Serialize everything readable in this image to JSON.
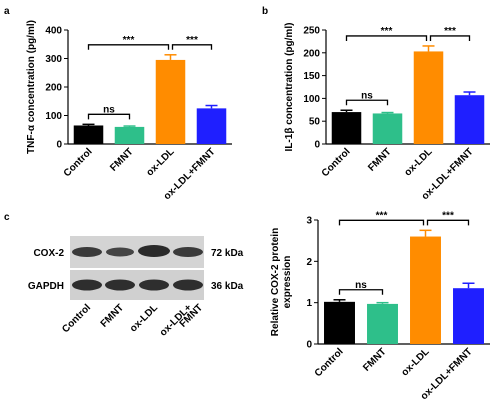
{
  "panel_labels": [
    "a",
    "b",
    "c"
  ],
  "chart_data": [
    {
      "type": "bar",
      "ylabel": "TNF-α concentration (pg/ml)",
      "categories": [
        "Control",
        "FMNT",
        "ox-LDL",
        "ox-LDL+FMNT"
      ],
      "values": [
        65,
        60,
        295,
        125
      ],
      "errors": [
        4,
        3,
        18,
        10
      ],
      "colors": [
        "#000000",
        "#2ebf8a",
        "#ff8c00",
        "#1f1fff"
      ],
      "ylim": [
        0,
        400
      ],
      "yticks": [
        0,
        100,
        200,
        300,
        400
      ],
      "annotations": [
        {
          "text": "ns",
          "categories": [
            "Control",
            "FMNT"
          ]
        },
        {
          "text": "***",
          "categories": [
            "Control",
            "ox-LDL"
          ]
        },
        {
          "text": "***",
          "categories": [
            "ox-LDL",
            "ox-LDL+FMNT"
          ]
        }
      ]
    },
    {
      "type": "bar",
      "ylabel": "IL-1β concentration (pg/ml)",
      "categories": [
        "Control",
        "FMNT",
        "ox-LDL",
        "ox-LDL+FMNT"
      ],
      "values": [
        70,
        67,
        203,
        107
      ],
      "errors": [
        4,
        2,
        12,
        7
      ],
      "colors": [
        "#000000",
        "#2ebf8a",
        "#ff8c00",
        "#1f1fff"
      ],
      "ylim": [
        0,
        250
      ],
      "yticks": [
        0,
        50,
        100,
        150,
        200,
        250
      ],
      "annotations": [
        {
          "text": "ns",
          "categories": [
            "Control",
            "FMNT"
          ]
        },
        {
          "text": "***",
          "categories": [
            "Control",
            "ox-LDL"
          ]
        },
        {
          "text": "***",
          "categories": [
            "ox-LDL",
            "ox-LDL+FMNT"
          ]
        }
      ]
    },
    {
      "type": "bar",
      "ylabel": [
        "Relative COX-2 protein",
        "expression"
      ],
      "categories": [
        "Control",
        "FMNT",
        "ox-LDL",
        "ox-LDL+FMNT"
      ],
      "values": [
        1.02,
        0.97,
        2.6,
        1.35
      ],
      "errors": [
        0.05,
        0.03,
        0.15,
        0.12
      ],
      "colors": [
        "#000000",
        "#2ebf8a",
        "#ff8c00",
        "#1f1fff"
      ],
      "ylim": [
        0,
        3
      ],
      "yticks": [
        0,
        1,
        2,
        3
      ],
      "annotations": [
        {
          "text": "ns",
          "categories": [
            "Control",
            "FMNT"
          ]
        },
        {
          "text": "***",
          "categories": [
            "Control",
            "ox-LDL"
          ]
        },
        {
          "text": "***",
          "categories": [
            "ox-LDL",
            "ox-LDL+FMNT"
          ]
        }
      ]
    }
  ],
  "blot": {
    "rows": [
      {
        "label": "COX-2",
        "size": "72 kDa"
      },
      {
        "label": "GAPDH",
        "size": "36 kDa"
      }
    ],
    "lanes": [
      [
        "Control"
      ],
      [
        "FMNT"
      ],
      [
        "ox-LDL"
      ],
      [
        "ox-LDL+",
        "FMNT"
      ]
    ]
  }
}
